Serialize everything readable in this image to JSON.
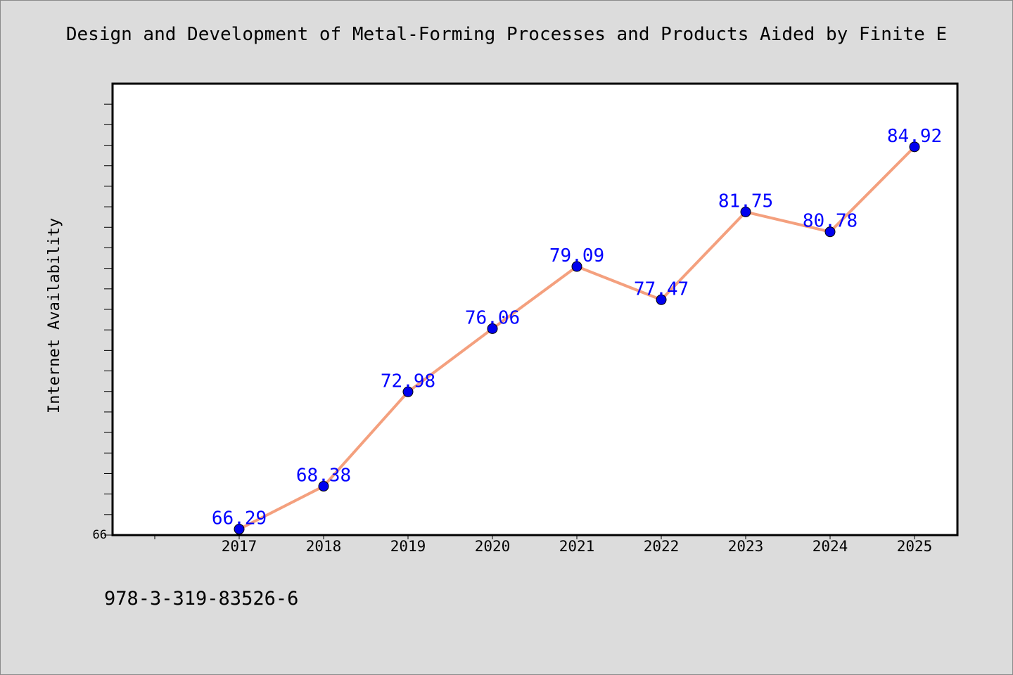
{
  "title": "Design and Development of Metal-Forming Processes and Products Aided by Finite E",
  "footer_text": "978-3-319-83526-6",
  "colors": {
    "background": "#dcdcdc",
    "plot_background": "#ffffff",
    "line": "#f4a07e",
    "marker": "#0000ee",
    "data_label": "#0000ff"
  },
  "chart_data": {
    "type": "line",
    "title": "Design and Development of Metal-Forming Processes and Products Aided by Finite E",
    "xlabel": "",
    "ylabel": "Internet Availability",
    "categories": [
      "2017",
      "2018",
      "2019",
      "2020",
      "2021",
      "2022",
      "2023",
      "2024",
      "2025"
    ],
    "series": [
      {
        "values": [
          66.29,
          68.38,
          72.98,
          76.06,
          79.09,
          77.47,
          81.75,
          80.78,
          84.92
        ]
      }
    ],
    "data_labels": [
      "66.29",
      "68.38",
      "72.98",
      "76.06",
      "79.09",
      "77.47",
      "81.75",
      "80.78",
      "84.92"
    ],
    "ytick_label": "66",
    "ylim": [
      66,
      88
    ],
    "grid": false,
    "legend": "none"
  }
}
